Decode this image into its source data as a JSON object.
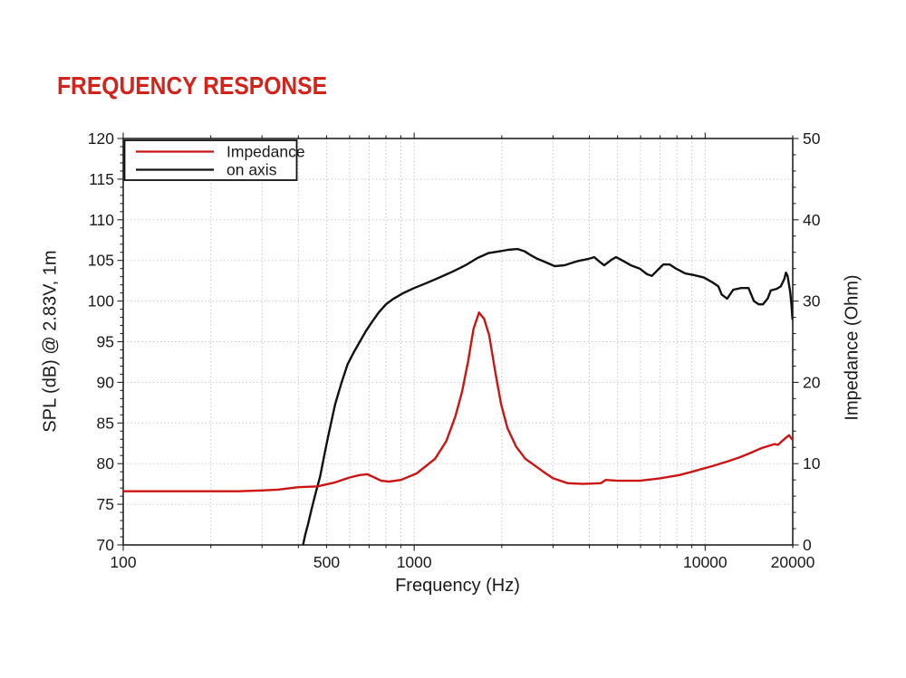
{
  "title": "FREQUENCY RESPONSE",
  "colors": {
    "title": "#d2241d",
    "impedance_curve": "#cc1414",
    "on_axis_curve": "#111111",
    "axis": "#222222",
    "grid": "#c9c9c9",
    "background": "#ffffff"
  },
  "chart_data": {
    "type": "line",
    "title": "FREQUENCY RESPONSE",
    "x_axis": {
      "label": "Frequency (Hz)",
      "scale": "log",
      "min": 100,
      "max": 20000,
      "major_ticks": [
        100,
        1000,
        10000
      ],
      "labeled_ticks": [
        100,
        500,
        1000,
        10000,
        20000
      ],
      "tick_label_texts": [
        "100",
        "500",
        "1000",
        "10000",
        "20000"
      ]
    },
    "y_left": {
      "label": "SPL (dB) @ 2.83V, 1m",
      "min": 70,
      "max": 120,
      "major_step": 5,
      "minor_step": 1,
      "tick_labels": [
        "70",
        "75",
        "80",
        "85",
        "90",
        "95",
        "100",
        "105",
        "110",
        "115",
        "120"
      ]
    },
    "y_right": {
      "label": "Impedance (Ohm)",
      "min": 0,
      "max": 50,
      "major_step": 10,
      "minor_step": 2,
      "tick_labels": [
        "0",
        "10",
        "20",
        "30",
        "40",
        "50"
      ]
    },
    "grid": {
      "style": "dashed",
      "horizontal_left_axis_step_db": 5,
      "vertical_at_log_minor_ticks": true
    },
    "legend": {
      "position": "top-left",
      "items": [
        {
          "label": "Impedance",
          "color": "#cc1414"
        },
        {
          "label": "on axis",
          "color": "#111111"
        }
      ]
    },
    "series": [
      {
        "name": "Impedance",
        "axis": "right",
        "unit": "Ohm",
        "color": "#cc1414",
        "points": [
          [
            100,
            6.6
          ],
          [
            150,
            6.6
          ],
          [
            200,
            6.6
          ],
          [
            250,
            6.6
          ],
          [
            300,
            6.7
          ],
          [
            340,
            6.8
          ],
          [
            400,
            7.1
          ],
          [
            465,
            7.2
          ],
          [
            535,
            7.7
          ],
          [
            600,
            8.3
          ],
          [
            650,
            8.6
          ],
          [
            690,
            8.7
          ],
          [
            730,
            8.3
          ],
          [
            770,
            7.9
          ],
          [
            820,
            7.8
          ],
          [
            900,
            8.0
          ],
          [
            1020,
            8.8
          ],
          [
            1180,
            10.6
          ],
          [
            1290,
            12.8
          ],
          [
            1385,
            15.8
          ],
          [
            1460,
            18.8
          ],
          [
            1530,
            22.5
          ],
          [
            1600,
            26.6
          ],
          [
            1670,
            28.6
          ],
          [
            1740,
            27.8
          ],
          [
            1810,
            25.8
          ],
          [
            1905,
            21.0
          ],
          [
            1990,
            17.3
          ],
          [
            2090,
            14.4
          ],
          [
            2240,
            12.1
          ],
          [
            2410,
            10.6
          ],
          [
            2660,
            9.5
          ],
          [
            2780,
            9.0
          ],
          [
            3000,
            8.2
          ],
          [
            3370,
            7.6
          ],
          [
            3800,
            7.5
          ],
          [
            4380,
            7.6
          ],
          [
            4550,
            8.0
          ],
          [
            5000,
            7.9
          ],
          [
            5960,
            7.9
          ],
          [
            7000,
            8.2
          ],
          [
            8150,
            8.6
          ],
          [
            9000,
            9.0
          ],
          [
            10600,
            9.7
          ],
          [
            12000,
            10.3
          ],
          [
            13200,
            10.8
          ],
          [
            14500,
            11.4
          ],
          [
            15600,
            11.9
          ],
          [
            17300,
            12.4
          ],
          [
            17800,
            12.3
          ],
          [
            18400,
            12.8
          ],
          [
            19400,
            13.5
          ],
          [
            19900,
            13.0
          ]
        ]
      },
      {
        "name": "on axis",
        "axis": "left",
        "unit": "dB",
        "color": "#111111",
        "points": [
          [
            415,
            70
          ],
          [
            422,
            71.2
          ],
          [
            432,
            72.6
          ],
          [
            444,
            74.4
          ],
          [
            458,
            76.3
          ],
          [
            475,
            78.4
          ],
          [
            490,
            80.9
          ],
          [
            505,
            83.2
          ],
          [
            520,
            85.3
          ],
          [
            535,
            87.3
          ],
          [
            562,
            89.9
          ],
          [
            590,
            92.2
          ],
          [
            620,
            93.7
          ],
          [
            660,
            95.4
          ],
          [
            685,
            96.4
          ],
          [
            712,
            97.3
          ],
          [
            755,
            98.6
          ],
          [
            800,
            99.6
          ],
          [
            850,
            100.3
          ],
          [
            920,
            101.0
          ],
          [
            1000,
            101.6
          ],
          [
            1100,
            102.2
          ],
          [
            1220,
            102.9
          ],
          [
            1350,
            103.6
          ],
          [
            1500,
            104.4
          ],
          [
            1650,
            105.3
          ],
          [
            1800,
            105.9
          ],
          [
            1950,
            106.1
          ],
          [
            2100,
            106.3
          ],
          [
            2270,
            106.4
          ],
          [
            2400,
            106.1
          ],
          [
            2500,
            105.7
          ],
          [
            2650,
            105.2
          ],
          [
            2780,
            104.9
          ],
          [
            3040,
            104.3
          ],
          [
            3280,
            104.4
          ],
          [
            3630,
            104.9
          ],
          [
            3980,
            105.2
          ],
          [
            4160,
            105.4
          ],
          [
            4350,
            104.8
          ],
          [
            4500,
            104.4
          ],
          [
            4770,
            105.1
          ],
          [
            4940,
            105.4
          ],
          [
            5190,
            105.0
          ],
          [
            5560,
            104.4
          ],
          [
            5960,
            104.0
          ],
          [
            6320,
            103.3
          ],
          [
            6560,
            103.1
          ],
          [
            6900,
            103.9
          ],
          [
            7180,
            104.5
          ],
          [
            7560,
            104.5
          ],
          [
            7940,
            104.0
          ],
          [
            8540,
            103.4
          ],
          [
            9170,
            103.2
          ],
          [
            9900,
            102.9
          ],
          [
            10600,
            102.3
          ],
          [
            11100,
            101.8
          ],
          [
            11400,
            100.8
          ],
          [
            11900,
            100.3
          ],
          [
            12500,
            101.4
          ],
          [
            13300,
            101.6
          ],
          [
            14100,
            101.6
          ],
          [
            14700,
            100.0
          ],
          [
            15300,
            99.6
          ],
          [
            15800,
            99.6
          ],
          [
            16400,
            100.3
          ],
          [
            16800,
            101.3
          ],
          [
            17600,
            101.5
          ],
          [
            18200,
            101.8
          ],
          [
            18700,
            102.7
          ],
          [
            18950,
            103.5
          ],
          [
            19200,
            103.1
          ],
          [
            19600,
            101.1
          ],
          [
            19800,
            99.5
          ],
          [
            19950,
            97.8
          ]
        ]
      }
    ]
  }
}
